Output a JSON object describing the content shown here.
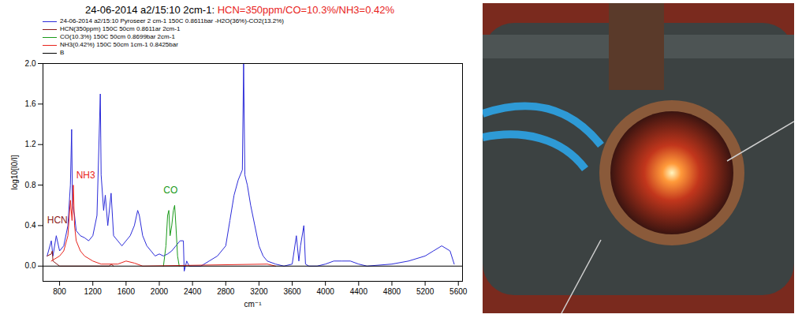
{
  "chart_data": {
    "type": "line",
    "title": "24-06-2014 a2/15:10 2cm-1:",
    "title_red": "HCN=350ppm/CO=10.3%/NH3=0.42%",
    "x_label": "cm⁻¹",
    "y_label": "log10[I0/I]",
    "xlim": [
      600,
      5650
    ],
    "xticks": [
      800,
      1200,
      1600,
      2000,
      2400,
      2800,
      3200,
      3600,
      4000,
      4400,
      4800,
      5200,
      5600
    ],
    "ylim": [
      -0.15,
      2.0
    ],
    "yticks": [
      {
        "value": 0,
        "label": "0.0"
      },
      {
        "value": 0.4,
        "label": "0.4"
      },
      {
        "value": 0.8,
        "label": "0.8"
      },
      {
        "value": 1.2,
        "label": "1.2"
      },
      {
        "value": 1.6,
        "label": "1.6"
      },
      {
        "value": 2.0,
        "label": "2.0"
      }
    ],
    "legend": "top",
    "grid": false,
    "series": [
      {
        "name": "24-06-2014 a2/15:10 Pyroseer 2 cm-1 150C 0.8611bar -H2O(36%)-CO2(13.2%)",
        "color": "#2b2bd9",
        "x": [
          650,
          700,
          720,
          760,
          800,
          850,
          900,
          930,
          945,
          955,
          980,
          1000,
          1050,
          1100,
          1150,
          1200,
          1250,
          1290,
          1300,
          1330,
          1350,
          1380,
          1420,
          1450,
          1500,
          1550,
          1600,
          1650,
          1700,
          1740,
          1760,
          1800,
          1850,
          1900,
          1950,
          2000,
          2050,
          2100,
          2150,
          2200,
          2250,
          2290,
          2300,
          2330,
          2360,
          2400,
          2500,
          2600,
          2700,
          2800,
          2850,
          2900,
          2950,
          3000,
          3015,
          3030,
          3060,
          3100,
          3150,
          3200,
          3250,
          3300,
          3400,
          3500,
          3600,
          3650,
          3680,
          3700,
          3740,
          3760,
          3800,
          3900,
          4000,
          4100,
          4200,
          4300,
          4400,
          4500,
          4800,
          5000,
          5200,
          5300,
          5400,
          5500,
          5550
        ],
        "values": [
          0.1,
          0.25,
          0.1,
          0.3,
          0.15,
          0.2,
          0.4,
          0.8,
          1.35,
          0.6,
          0.5,
          0.35,
          0.3,
          0.28,
          0.25,
          0.3,
          0.5,
          1.7,
          0.9,
          0.55,
          0.7,
          0.4,
          0.72,
          0.3,
          0.25,
          0.2,
          0.25,
          0.3,
          0.4,
          0.55,
          0.5,
          0.3,
          0.2,
          0.15,
          0.1,
          0.12,
          0.1,
          0.12,
          0.15,
          0.2,
          0.25,
          0.25,
          -0.05,
          0.05,
          0.0,
          0.0,
          0.0,
          0.05,
          0.1,
          0.2,
          0.45,
          0.7,
          0.85,
          0.95,
          2.0,
          0.9,
          0.8,
          0.6,
          0.4,
          0.2,
          0.1,
          0.05,
          0.02,
          0.0,
          0.02,
          0.3,
          0.05,
          0.2,
          0.4,
          0.02,
          0.0,
          0.0,
          0.02,
          0.05,
          0.05,
          0.05,
          0.02,
          0.0,
          0.02,
          0.05,
          0.1,
          0.15,
          0.2,
          0.15,
          0.02
        ]
      },
      {
        "name": "HCN(350ppm) 150C 50cm 0.8611ar 2cm-1",
        "color": "#8b1a1a",
        "x": [
          650,
          700,
          712,
          720,
          800,
          1400,
          1420,
          1450
        ],
        "values": [
          0.1,
          0.12,
          0.15,
          0.05,
          0.0,
          0.0,
          0.02,
          0.0
        ]
      },
      {
        "name": "CO(10.3%) 150C 50cm 0.8699bar 2cm-1",
        "color": "#1a9a1a",
        "x": [
          2050,
          2080,
          2100,
          2115,
          2130,
          2150,
          2170,
          2185,
          2200,
          2220,
          2240
        ],
        "values": [
          0,
          0.2,
          0.5,
          0.55,
          0.3,
          0.4,
          0.55,
          0.6,
          0.4,
          0.1,
          0
        ]
      },
      {
        "name": "NH3(0.42%) 150C 50cm 1cm-1 0.8425bar",
        "color": "#e8231c",
        "x": [
          700,
          800,
          850,
          900,
          930,
          950,
          965,
          980,
          1000,
          1050,
          1100,
          1200,
          1300,
          1500,
          1600,
          1700,
          1800,
          3300,
          3400
        ],
        "values": [
          0.05,
          0.1,
          0.15,
          0.3,
          0.65,
          0.45,
          0.8,
          0.4,
          0.25,
          0.15,
          0.1,
          0.05,
          0.02,
          0.02,
          0.05,
          0.03,
          0.0,
          0.02,
          0.0
        ]
      },
      {
        "name": "B",
        "color": "#000000",
        "x": [
          600,
          5650
        ],
        "values": [
          0,
          0
        ]
      }
    ],
    "annotations": [
      {
        "text": "HCN",
        "x": 650,
        "y": 0.45,
        "color": "#8b1a1a"
      },
      {
        "text": "NH3",
        "x": 1000,
        "y": 0.9,
        "color": "#e8231c"
      },
      {
        "text": "CO",
        "x": 2050,
        "y": 0.75,
        "color": "#1a9a1a"
      }
    ]
  }
}
